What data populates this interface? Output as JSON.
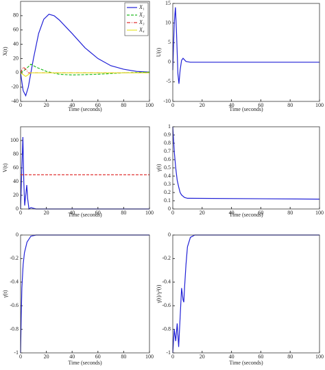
{
  "chart_data": [
    {
      "type": "line",
      "xlabel": "Time (seconds)",
      "ylabel": "X(t)",
      "xlim": [
        0,
        100
      ],
      "ylim": [
        -40,
        100
      ],
      "xticks": [
        0,
        20,
        40,
        60,
        80,
        100
      ],
      "yticks": [
        -40,
        -20,
        0,
        20,
        40,
        60,
        80
      ],
      "legend": "upper right",
      "series": [
        {
          "name": "X₁",
          "color": "#1f1fd6",
          "style": "solid",
          "x": [
            0,
            2,
            4,
            6,
            8,
            10,
            14,
            18,
            22,
            26,
            30,
            40,
            50,
            60,
            70,
            80,
            90,
            100
          ],
          "values": [
            0,
            -25,
            -32,
            -20,
            0,
            20,
            55,
            75,
            82,
            80,
            74,
            55,
            35,
            20,
            10,
            5,
            2,
            1
          ]
        },
        {
          "name": "X₂",
          "color": "#22bb22",
          "style": "dashed",
          "x": [
            0,
            4,
            8,
            12,
            20,
            30,
            40,
            60,
            80,
            100
          ],
          "values": [
            0,
            5,
            12,
            8,
            2,
            -2,
            -3,
            -2,
            0,
            1
          ]
        },
        {
          "name": "X₃",
          "color": "#e03030",
          "style": "dashdot",
          "x": [
            0,
            2,
            4,
            6,
            8,
            20,
            100
          ],
          "values": [
            0,
            8,
            5,
            0,
            0,
            0,
            0
          ]
        },
        {
          "name": "X₄",
          "color": "#e6e62a",
          "style": "solid",
          "x": [
            0,
            4,
            8,
            100
          ],
          "values": [
            0,
            -5,
            0,
            0
          ]
        }
      ]
    },
    {
      "type": "line",
      "xlabel": "Time (seconds)",
      "ylabel": "U(t)",
      "xlim": [
        0,
        100
      ],
      "ylim": [
        -10,
        15
      ],
      "xticks": [
        0,
        20,
        40,
        60,
        80,
        100
      ],
      "yticks": [
        -10,
        -5,
        0,
        5,
        10,
        15
      ],
      "series": [
        {
          "color": "#1f1fd6",
          "style": "solid",
          "x": [
            0,
            1,
            1.8,
            2.5,
            3.5,
            4.2,
            5,
            6,
            7,
            9,
            12,
            100
          ],
          "values": [
            -2,
            10,
            14,
            8,
            -3,
            -5.5,
            -2,
            0.5,
            1,
            0.2,
            0,
            0
          ]
        }
      ]
    },
    {
      "type": "line",
      "xlabel": "Time (seconds)",
      "ylabel": "V(t)",
      "xlim": [
        0,
        100
      ],
      "ylim": [
        0,
        120
      ],
      "xticks": [
        0,
        20,
        40,
        60,
        80,
        100
      ],
      "yticks": [
        0,
        20,
        40,
        60,
        80,
        100
      ],
      "series": [
        {
          "color": "#1f1fd6",
          "style": "solid",
          "x": [
            0,
            1,
            1.8,
            2.5,
            3.2,
            4,
            4.8,
            5.5,
            6.5,
            8,
            12,
            100
          ],
          "values": [
            0,
            60,
            105,
            40,
            5,
            20,
            35,
            15,
            0,
            2,
            0,
            0
          ]
        },
        {
          "color": "#e03030",
          "style": "dashed",
          "x": [
            0,
            100
          ],
          "values": [
            50,
            50
          ]
        }
      ]
    },
    {
      "type": "line",
      "xlabel": "Time (seconds)",
      "ylabel": "γ(t)",
      "xlim": [
        0,
        100
      ],
      "ylim": [
        0,
        1
      ],
      "xticks": [
        0,
        20,
        40,
        60,
        80,
        100
      ],
      "yticks": [
        0,
        0.1,
        0.2,
        0.3,
        0.4,
        0.5,
        0.6,
        0.7,
        0.8,
        0.9,
        1
      ],
      "series": [
        {
          "color": "#1f1fd6",
          "style": "solid",
          "x": [
            0,
            1,
            2,
            3,
            4,
            5,
            6,
            8,
            10,
            100
          ],
          "values": [
            1,
            0.7,
            0.5,
            0.35,
            0.27,
            0.2,
            0.17,
            0.14,
            0.13,
            0.12
          ]
        }
      ]
    },
    {
      "type": "line",
      "xlabel": "Time (seconds)",
      "ylabel": "γ̇(t)",
      "xlim": [
        0,
        100
      ],
      "ylim": [
        -1,
        0
      ],
      "xticks": [
        0,
        20,
        40,
        60,
        80,
        100
      ],
      "yticks": [
        -1,
        -0.8,
        -0.6,
        -0.4,
        -0.2,
        0
      ],
      "series": [
        {
          "color": "#1f1fd6",
          "style": "solid",
          "x": [
            0,
            0.5,
            1,
            2,
            3,
            5,
            8,
            12,
            100
          ],
          "values": [
            -1,
            -0.7,
            -0.45,
            -0.25,
            -0.15,
            -0.06,
            -0.01,
            0,
            0
          ]
        }
      ]
    },
    {
      "type": "line",
      "xlabel": "Time (seconds)",
      "ylabel": "γ̇(t)/γ²(t)",
      "xlim": [
        0,
        100
      ],
      "ylim": [
        -1,
        0
      ],
      "xticks": [
        0,
        20,
        40,
        60,
        80,
        100
      ],
      "yticks": [
        -1,
        -0.8,
        -0.6,
        -0.4,
        -0.2,
        0
      ],
      "series": [
        {
          "color": "#1f1fd6",
          "style": "solid",
          "x": [
            0,
            1,
            2,
            3,
            4,
            5,
            6,
            7,
            7.5,
            8,
            9,
            10,
            12,
            15,
            100
          ],
          "values": [
            -1,
            -0.8,
            -0.9,
            -0.75,
            -0.95,
            -0.7,
            -0.45,
            -0.55,
            -0.57,
            -0.45,
            -0.25,
            -0.1,
            -0.02,
            0,
            0
          ]
        }
      ]
    }
  ]
}
